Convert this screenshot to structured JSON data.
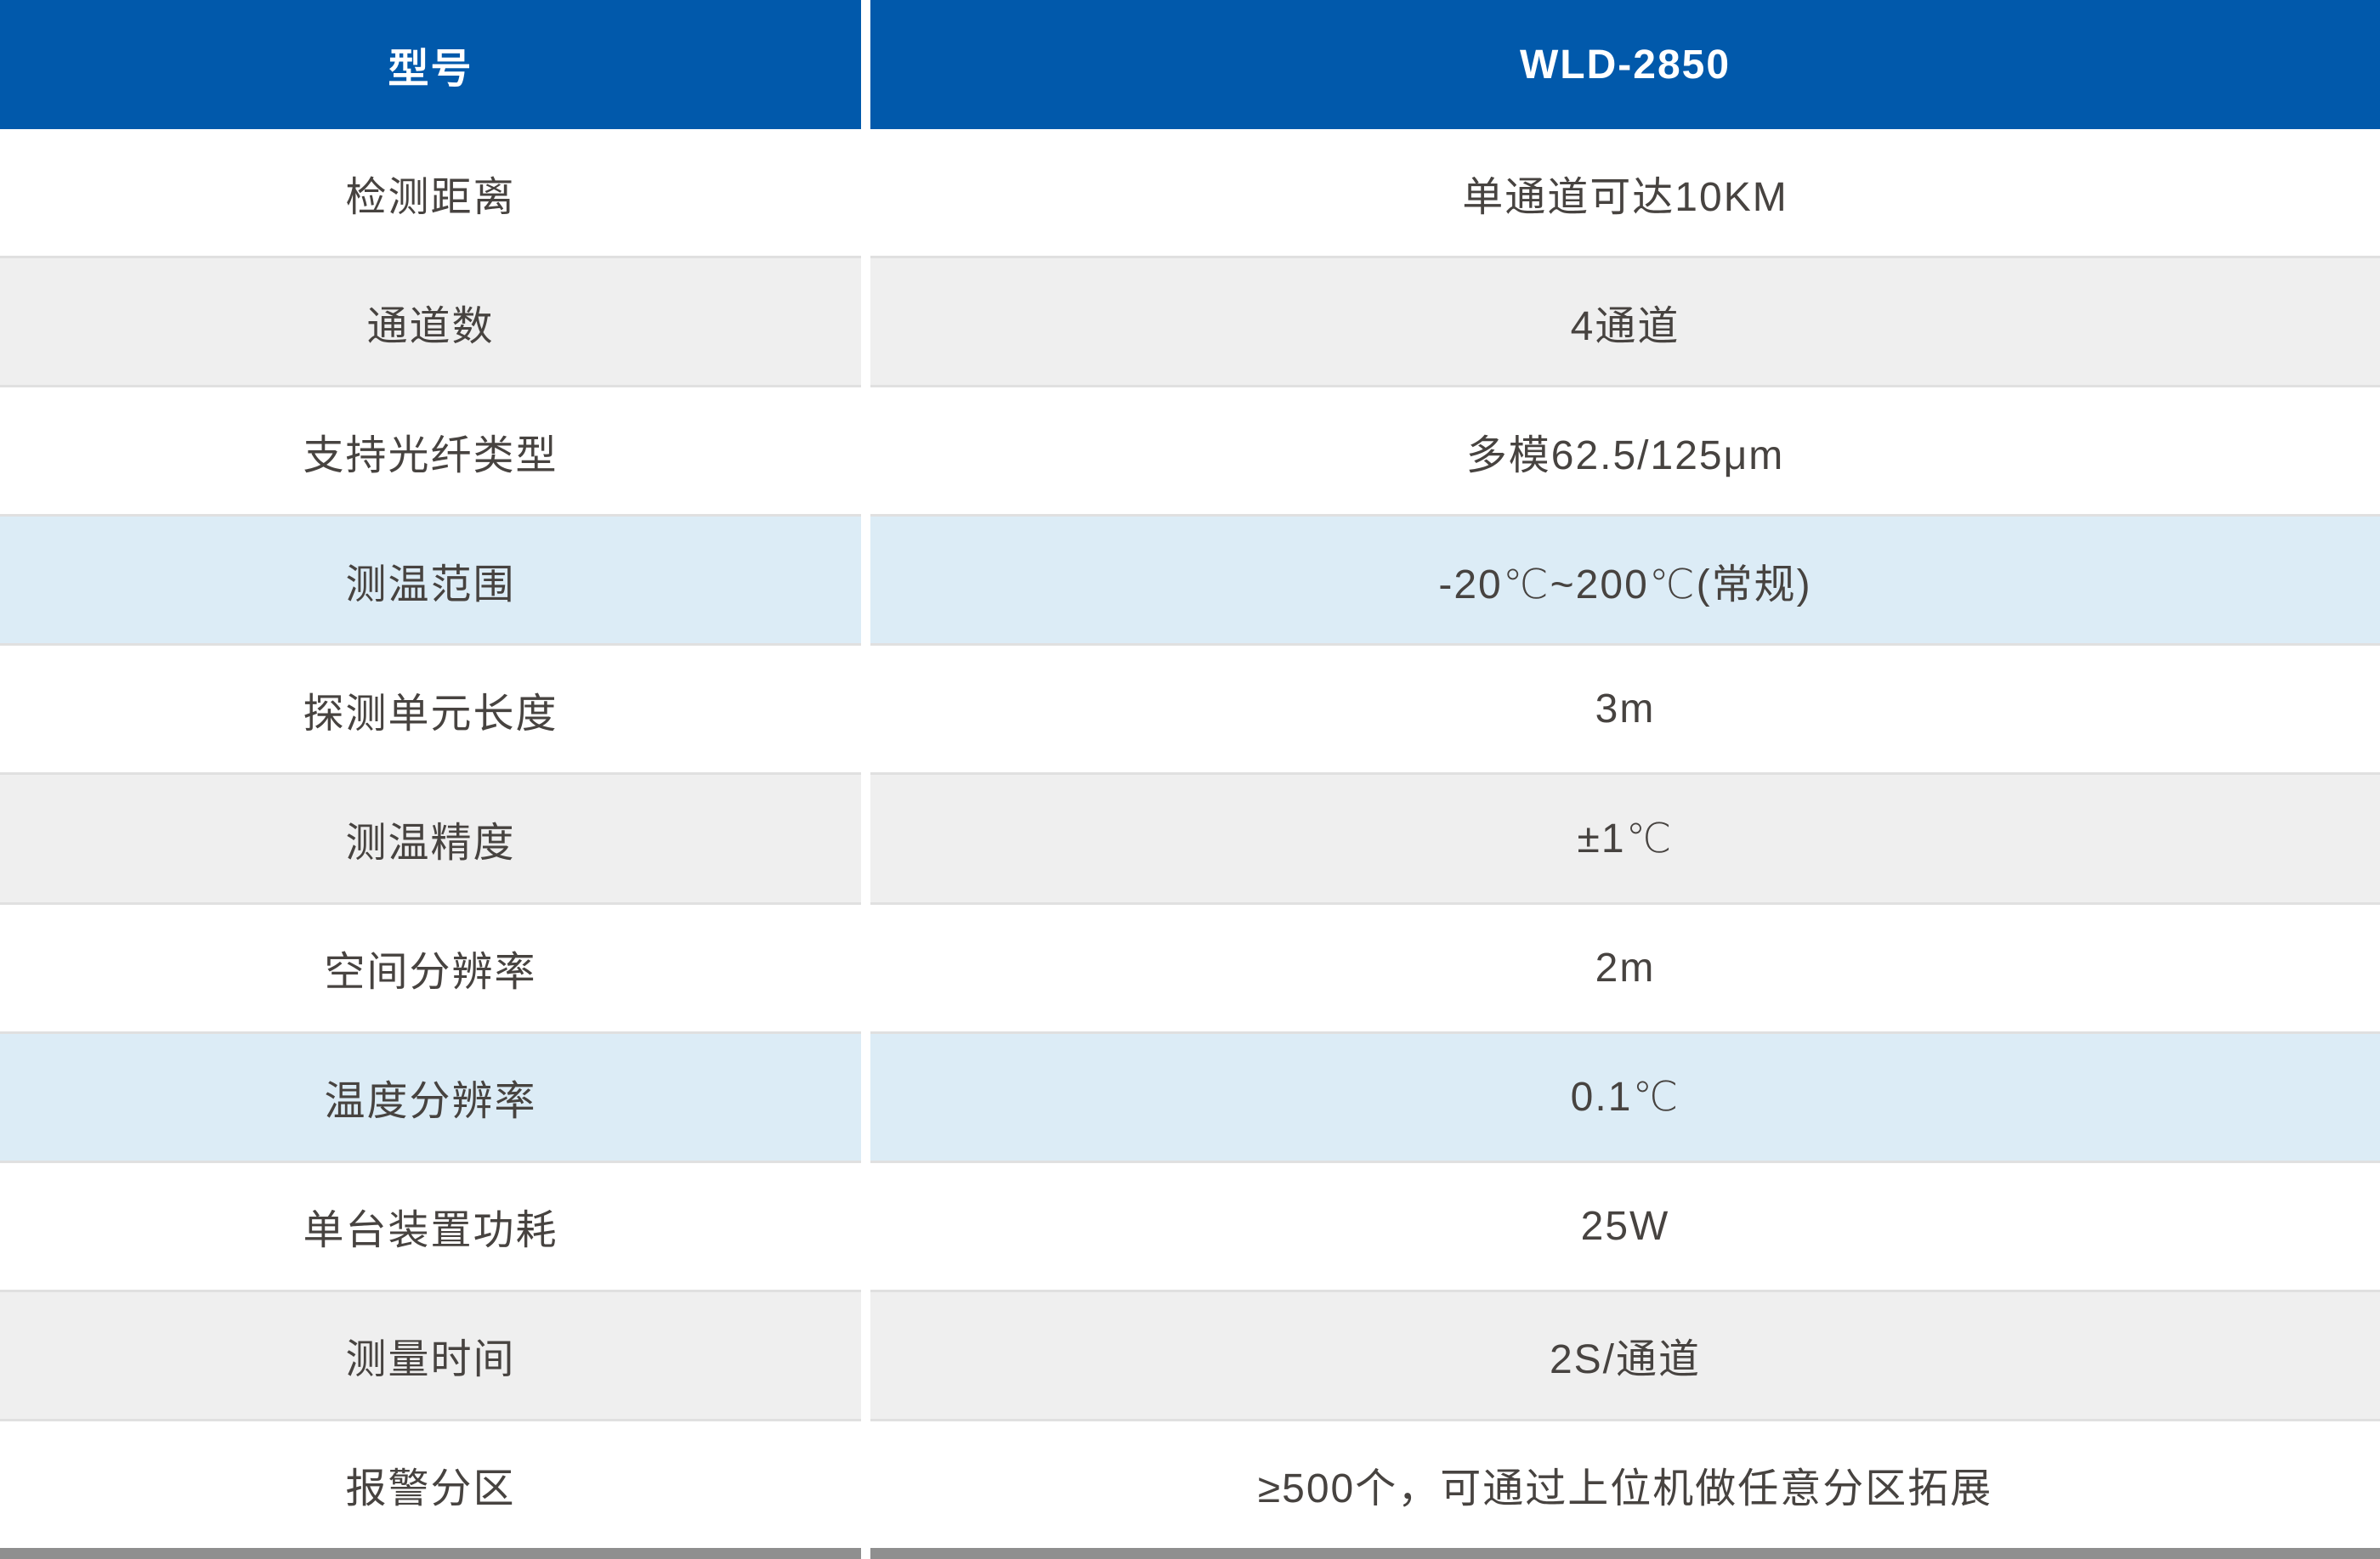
{
  "table": {
    "header": {
      "col1": "型号",
      "col2": "WLD-2850"
    },
    "rows": [
      {
        "label": "检测距离",
        "value": "单通道可达10KM"
      },
      {
        "label": "通道数",
        "value": "4通道"
      },
      {
        "label": "支持光纤类型",
        "value": "多模62.5/125μm"
      },
      {
        "label": "测温范围",
        "value": "-20℃~200℃(常规)"
      },
      {
        "label": "探测单元长度",
        "value": "3m"
      },
      {
        "label": "测温精度",
        "value": "±1℃"
      },
      {
        "label": "空间分辨率",
        "value": "2m"
      },
      {
        "label": "温度分辨率",
        "value": "0.1℃"
      },
      {
        "label": "单台装置功耗",
        "value": "25W"
      },
      {
        "label": "测量时间",
        "value": "2S/通道"
      },
      {
        "label": "报警分区",
        "value": "≥500个，可通过上位机做任意分区拓展"
      }
    ],
    "colors": {
      "header_bg": "#0159AB",
      "header_text": "#FFFFFF",
      "gray_row_bg": "#EFEFEF",
      "blue_row_bg": "#DCECF6",
      "white_row_bg": "#FFFFFF",
      "row_divider": "#E0E0E0",
      "bottom_bar": "#8F8F8F",
      "body_text": "#474340"
    }
  }
}
